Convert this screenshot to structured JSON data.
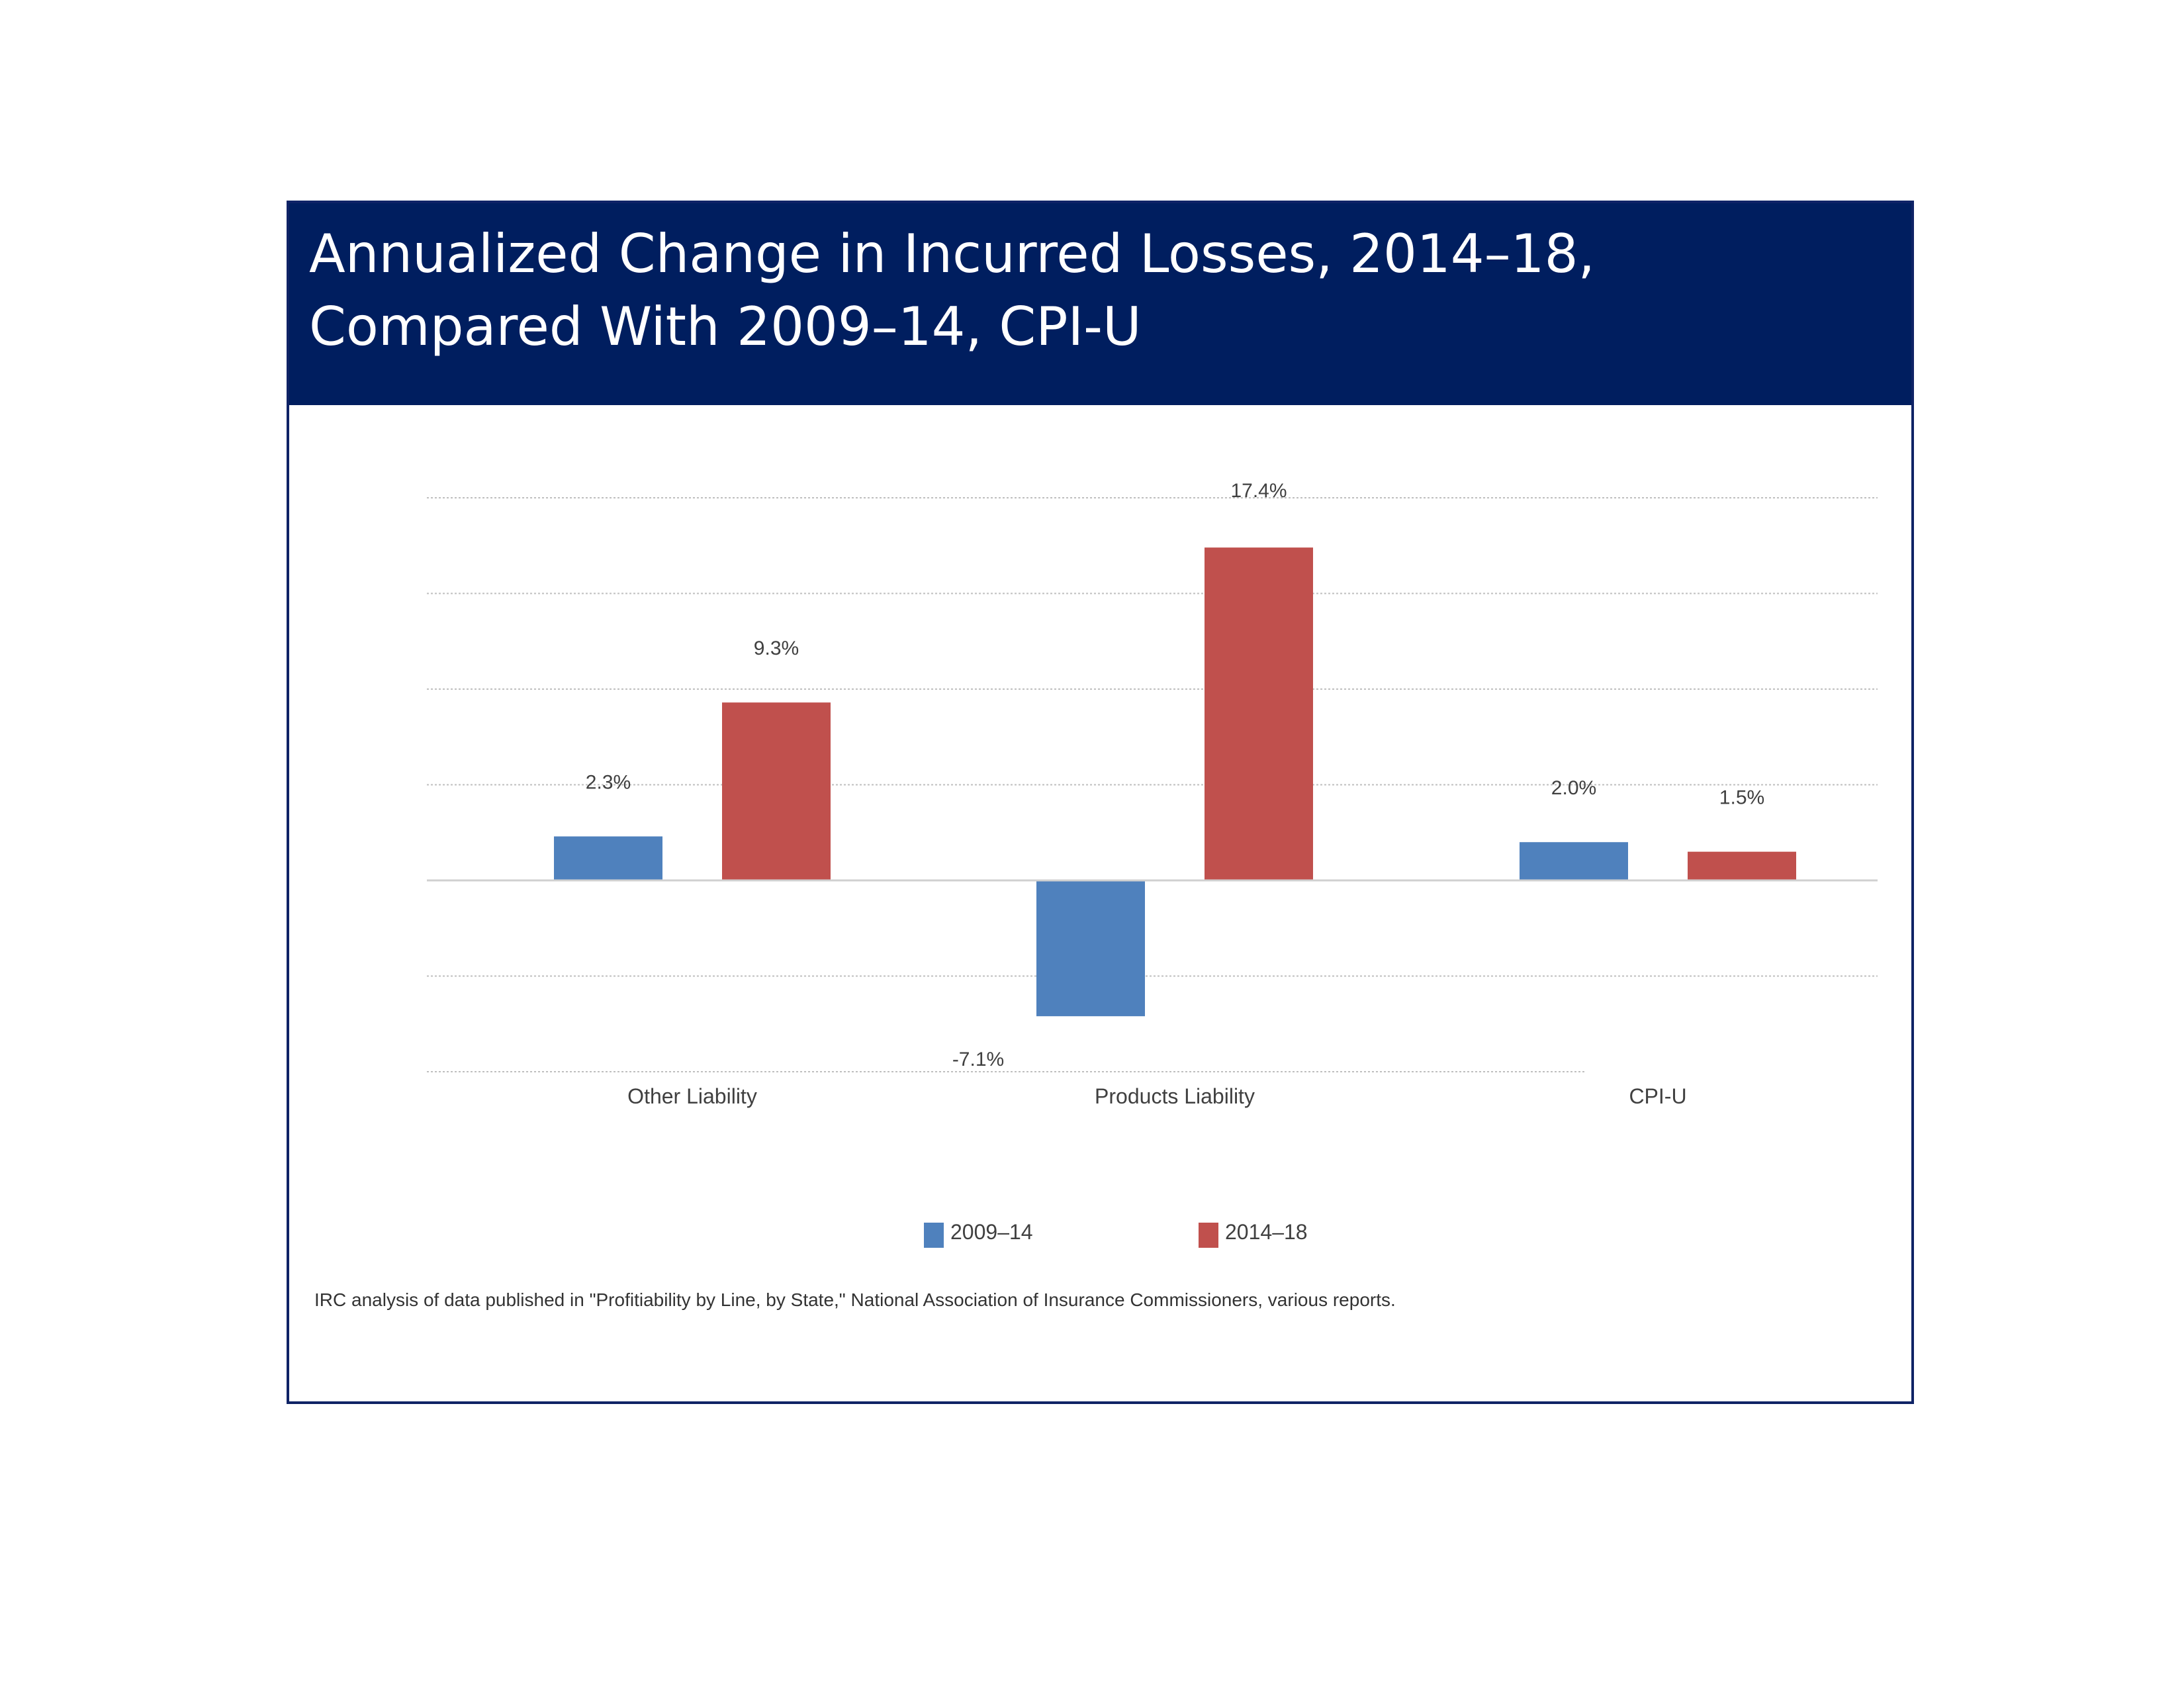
{
  "header": {
    "title": "Annualized Change in Incurred Losses, 2014–18,\nCompared With 2009–14, CPI-U"
  },
  "colors": {
    "header_bg": "#001e5f",
    "frame_border": "#0f2366",
    "series_2009_14": "#4f81bd",
    "series_2014_18": "#c0504d"
  },
  "chart_data": {
    "type": "bar",
    "title": "Annualized Change in Incurred Losses, 2014–18, Compared With 2009–14, CPI-U",
    "categories": [
      "Other Liability",
      "Products Liability",
      "CPI-U"
    ],
    "series": [
      {
        "name": "2009–14",
        "values": [
          2.3,
          -7.1,
          2.0
        ],
        "labels": [
          "2.3%",
          "-7.1%",
          "2.0%"
        ],
        "color": "#4f81bd"
      },
      {
        "name": "2014–18",
        "values": [
          9.3,
          17.4,
          1.5
        ],
        "labels": [
          "9.3%",
          "17.4%",
          "1.5%"
        ],
        "color": "#c0504d"
      }
    ],
    "ylim": [
      -10,
      20
    ],
    "gridlines": [
      -10,
      -5,
      0,
      5,
      10,
      15,
      20
    ],
    "grid": true,
    "y_tick_labels": false,
    "legend": "bottom-center"
  },
  "source": "IRC analysis of data published in \"Profitiability by Line, by State,\" National Association of Insurance Commissioners, various reports."
}
